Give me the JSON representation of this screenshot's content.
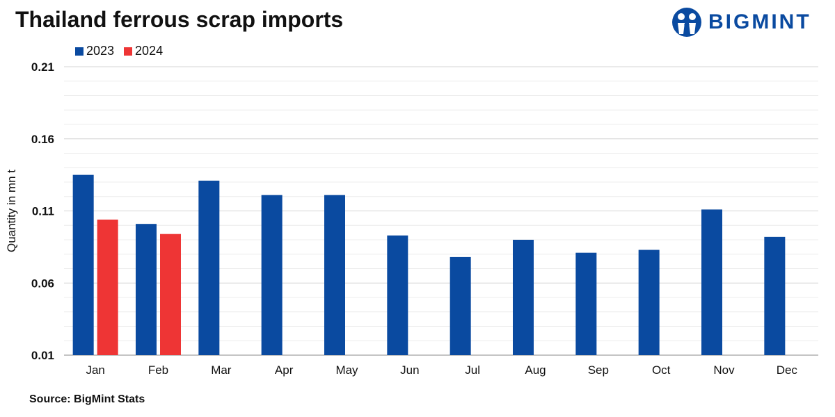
{
  "brand": {
    "name": "BIGMINT",
    "color": "#0a4aa0"
  },
  "source": "Source: BigMint Stats",
  "chart_data": {
    "type": "bar",
    "title": "Thailand ferrous scrap imports",
    "xlabel": "",
    "ylabel": "Quantity in mn t",
    "categories": [
      "Jan",
      "Feb",
      "Mar",
      "Apr",
      "May",
      "Jun",
      "Jul",
      "Aug",
      "Sep",
      "Oct",
      "Nov",
      "Dec"
    ],
    "series": [
      {
        "name": "2023",
        "color": "#0a4aa0",
        "values": [
          0.135,
          0.101,
          0.131,
          0.121,
          0.121,
          0.093,
          0.078,
          0.09,
          0.081,
          0.083,
          0.111,
          0.092
        ]
      },
      {
        "name": "2024",
        "color": "#ee3535",
        "values": [
          0.104,
          0.094,
          null,
          null,
          null,
          null,
          null,
          null,
          null,
          null,
          null,
          null
        ]
      }
    ],
    "ylim": [
      0.01,
      0.21
    ],
    "yticks": [
      "0.01",
      "0.06",
      "0.11",
      "0.16",
      "0.21"
    ],
    "grid": true,
    "legend": "top-left"
  }
}
